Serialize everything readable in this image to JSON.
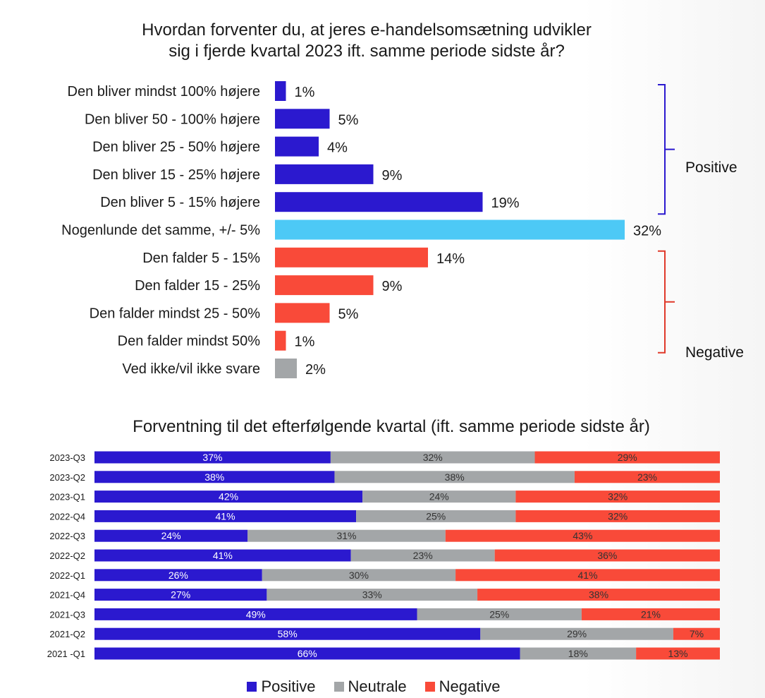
{
  "chart_data": [
    {
      "type": "bar",
      "orientation": "horizontal",
      "title_lines": [
        "Hvordan forventer du, at jeres e-handelsomsætning udvikler",
        "sig i fjerde kvartal 2023 ift. samme periode sidste år?"
      ],
      "categories": [
        "Den bliver mindst 100% højere",
        "Den bliver 50 - 100% højere",
        "Den bliver 25 - 50% højere",
        "Den bliver 15 - 25% højere",
        "Den bliver 5 - 15% højere",
        "Nogenlunde det samme, +/- 5%",
        "Den falder 5 - 15%",
        "Den falder 15 - 25%",
        "Den falder mindst 25 - 50%",
        "Den falder mindst 50%",
        "Ved ikke/vil ikke svare"
      ],
      "values": [
        1,
        5,
        4,
        9,
        19,
        32,
        14,
        9,
        5,
        1,
        2
      ],
      "value_labels": [
        "1%",
        "5%",
        "4%",
        "9%",
        "19%",
        "32%",
        "14%",
        "9%",
        "5%",
        "1%",
        "2%"
      ],
      "bar_colors": [
        "#2b19cf",
        "#2b19cf",
        "#2b19cf",
        "#2b19cf",
        "#2b19cf",
        "#4dc9f6",
        "#f94a39",
        "#f94a39",
        "#f94a39",
        "#f94a39",
        "#a3a6a8"
      ],
      "groups": [
        {
          "label": "Positive",
          "from": 0,
          "to": 4,
          "color": "#2b19cf"
        },
        {
          "label": "Negative",
          "from": 6,
          "to": 9,
          "color": "#e0392a"
        }
      ]
    },
    {
      "type": "bar",
      "orientation": "horizontal",
      "stacked": true,
      "title": "Forventning til det efterfølgende kvartal (ift. samme periode sidste år)",
      "categories": [
        "2023-Q3",
        "2023-Q2",
        "2023-Q1",
        "2022-Q4",
        "2022-Q3",
        "2022-Q2",
        "2022-Q1",
        "2021-Q4",
        "2021-Q3",
        "2021-Q2",
        "2021 -Q1"
      ],
      "series": [
        {
          "name": "Positive",
          "color": "#2b19cf",
          "values": [
            37,
            38,
            42,
            41,
            24,
            41,
            26,
            27,
            49,
            58,
            66
          ],
          "labels": [
            "37%",
            "38%",
            "42%",
            "41%",
            "24%",
            "41%",
            "26%",
            "27%",
            "49%",
            "58%",
            "66%"
          ]
        },
        {
          "name": "Neutrale",
          "color": "#a3a6a8",
          "values": [
            32,
            38,
            24,
            25,
            31,
            23,
            30,
            33,
            25,
            29,
            18
          ],
          "labels": [
            "32%",
            "38%",
            "24%",
            "25%",
            "31%",
            "23%",
            "30%",
            "33%",
            "25%",
            "29%",
            "18%"
          ]
        },
        {
          "name": "Negative",
          "color": "#f94a39",
          "values": [
            29,
            23,
            32,
            32,
            43,
            36,
            41,
            38,
            21,
            7,
            13
          ],
          "labels": [
            "29%",
            "23%",
            "32%",
            "32%",
            "43%",
            "36%",
            "41%",
            "38%",
            "21%",
            "7%",
            "13%"
          ]
        }
      ],
      "legend_position": "bottom-center"
    }
  ]
}
